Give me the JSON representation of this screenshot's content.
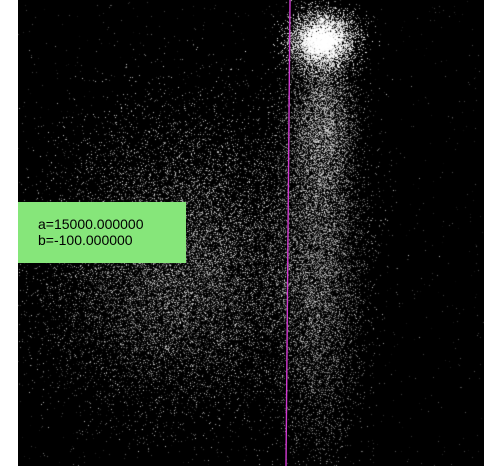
{
  "plot": {
    "background_color": "#000000",
    "point_color": "#ffffff",
    "line_color": "#d23ad2"
  },
  "params": {
    "box_color": "#86e67a",
    "a_text": "a=15000.000000",
    "b_text": "b=-100.000000"
  }
}
